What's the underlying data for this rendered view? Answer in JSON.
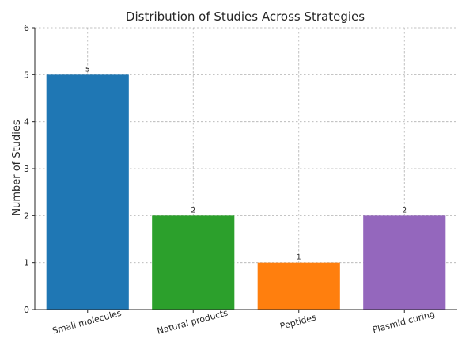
{
  "chart_data": {
    "type": "bar",
    "title": "Distribution of Studies Across Strategies",
    "xlabel": "",
    "ylabel": "Number of Studies",
    "categories": [
      "Small molecules",
      "Natural products",
      "Peptides",
      "Plasmid curing"
    ],
    "values": [
      5,
      2,
      1,
      2
    ],
    "colors": [
      "#1f77b4",
      "#2ca02c",
      "#ff7f0e",
      "#9467bd"
    ],
    "ylim": [
      0,
      6
    ],
    "yticks": [
      "0",
      "1",
      "2",
      "3",
      "4",
      "5",
      "6"
    ],
    "data_labels": [
      "5",
      "2",
      "1",
      "2"
    ],
    "grid": true,
    "xtick_rotation": "slanted"
  }
}
